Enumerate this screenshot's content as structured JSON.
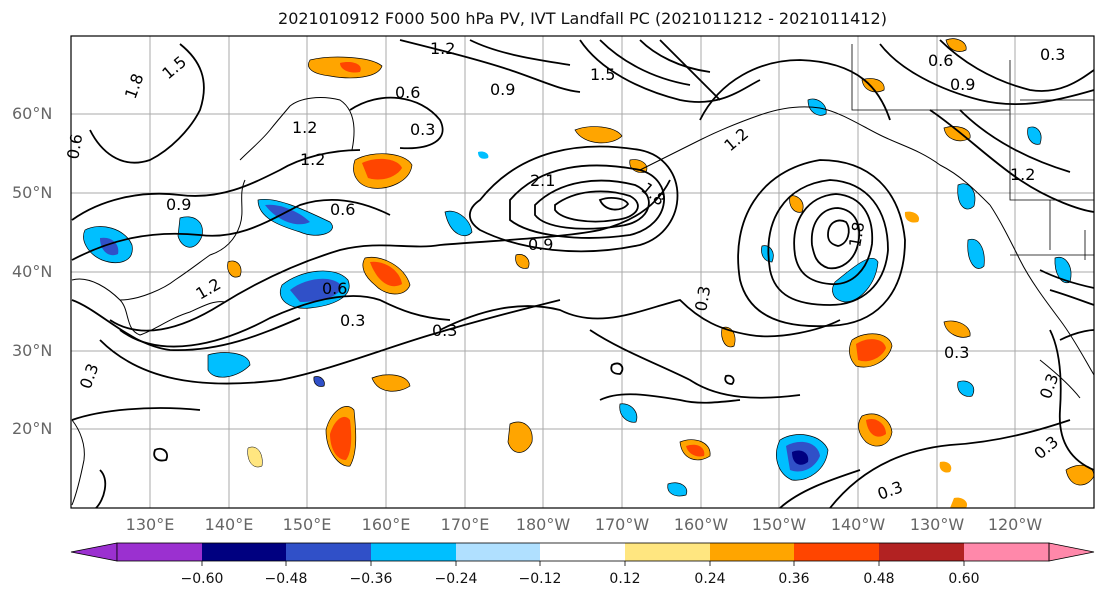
{
  "title": "2021010912 F000 500 hPa PV, IVT Landfall PC (2021011212 - 2021011412)",
  "lat_labels": [
    "60°N",
    "50°N",
    "40°N",
    "30°N",
    "20°N"
  ],
  "lon_labels": [
    "130°E",
    "140°E",
    "150°E",
    "160°E",
    "170°E",
    "180°W",
    "170°W",
    "160°W",
    "150°W",
    "140°W",
    "130°W",
    "120°W"
  ],
  "colorbar": {
    "ticks": [
      "−0.60",
      "−0.48",
      "−0.36",
      "−0.24",
      "−0.12",
      "0.12",
      "0.24",
      "0.36",
      "0.48",
      "0.60"
    ],
    "colors": [
      "#9b30d0",
      "#000080",
      "#3050c8",
      "#00bfff",
      "#b0e0ff",
      "#ffffff",
      "#ffe680",
      "#ffa500",
      "#ff4500",
      "#b22222",
      "#ff88aa"
    ]
  },
  "contour_labels": [
    "1.2",
    "1.5",
    "1.8",
    "0.9",
    "0.6",
    "0.3",
    "1.2",
    "0.6",
    "0.3",
    "1.5",
    "1.8",
    "2.1",
    "0.9",
    "1.2",
    "0.6",
    "0.9",
    "0.3",
    "0.3",
    "0.3",
    "1.2",
    "0.9",
    "0.6",
    "0.3",
    "1.8",
    "0.3",
    "0.3",
    "0.3",
    "0.3",
    "1.2",
    "0.6",
    "1.2"
  ],
  "chart_data": {
    "type": "heatmap",
    "title": "2021010912 F000 500 hPa PV, IVT Landfall PC (2021011212 - 2021011412)",
    "x_range_deg": [
      120,
      250
    ],
    "y_range_deg": [
      10,
      70
    ],
    "colorbar_levels": [
      -0.6,
      -0.48,
      -0.36,
      -0.24,
      -0.12,
      0.12,
      0.24,
      0.36,
      0.48,
      0.6
    ],
    "contour_levels": [
      0.3,
      0.6,
      0.9,
      1.2,
      1.5,
      1.8,
      2.1
    ]
  }
}
